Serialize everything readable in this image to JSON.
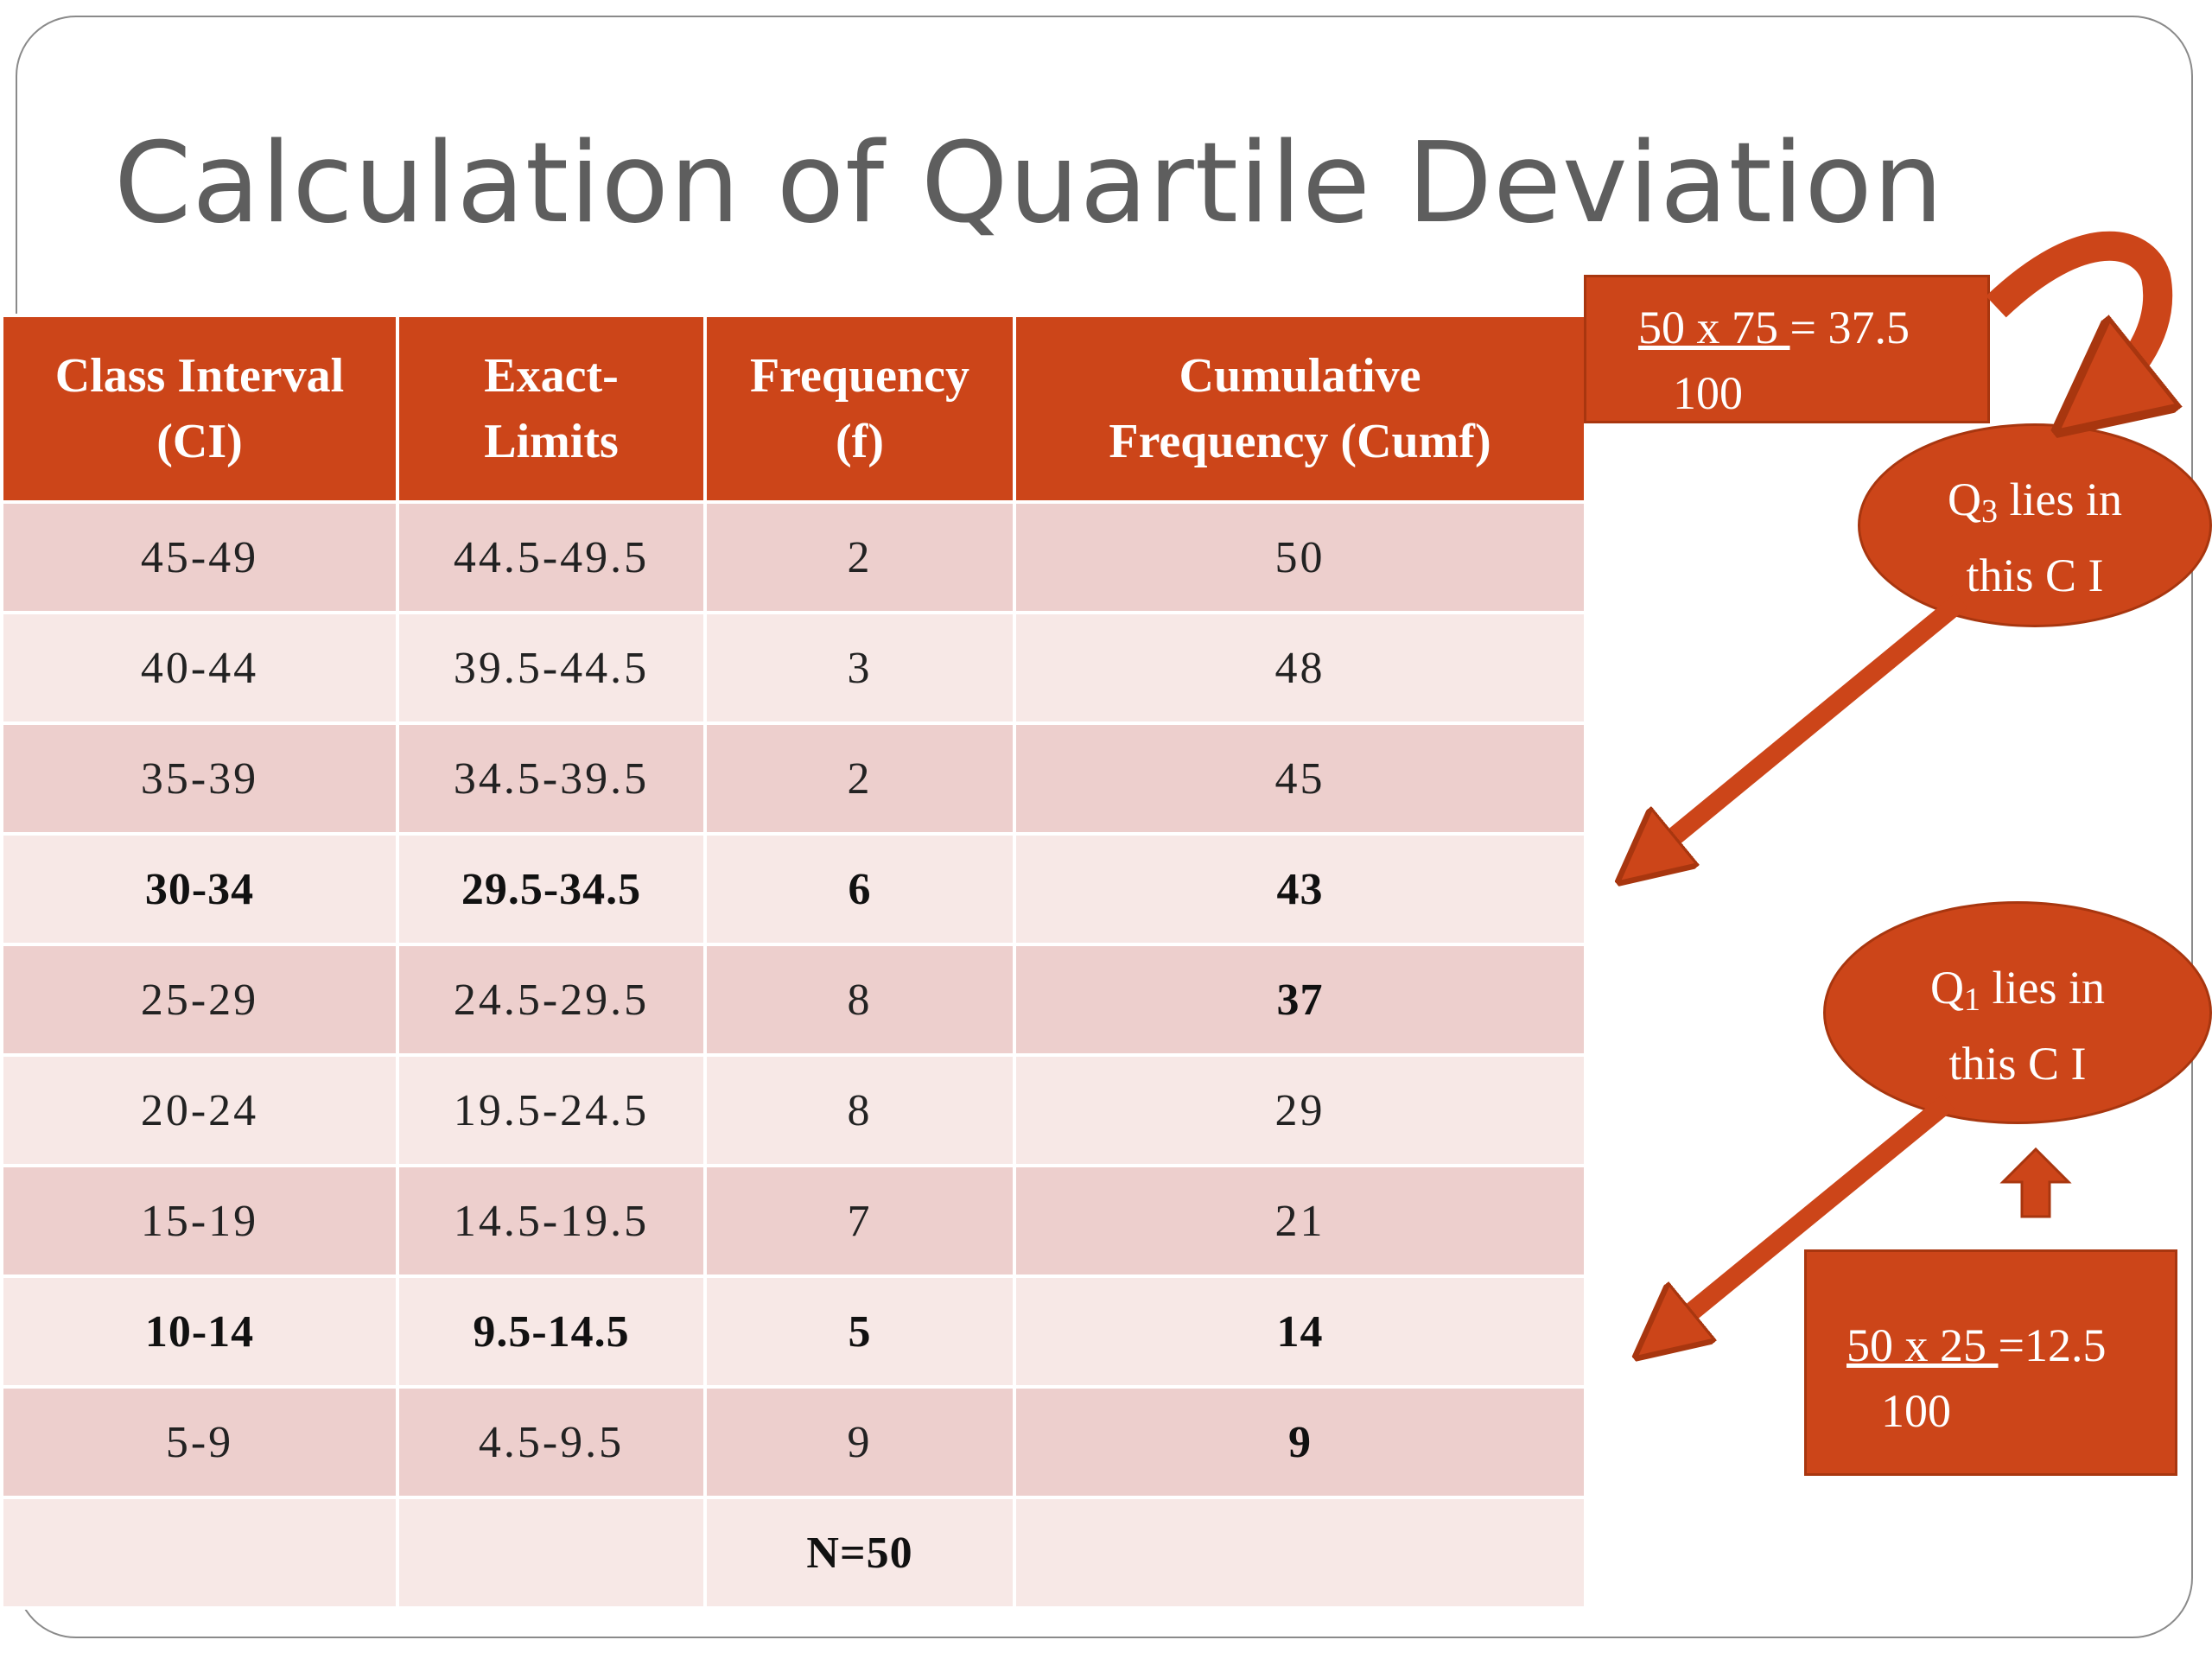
{
  "title": "Calculation of Quartile Deviation",
  "table": {
    "headers": [
      [
        "Class Interval",
        "(CI)"
      ],
      [
        "Exact-",
        "Limits"
      ],
      [
        "Frequency",
        "(f)"
      ],
      [
        "Cumulative",
        "Frequency (Cumf)"
      ]
    ],
    "rows": [
      {
        "ci": "45-49",
        "limits": "44.5-49.5",
        "f": "2",
        "cumf": "50"
      },
      {
        "ci": "40-44",
        "limits": "39.5-44.5",
        "f": "3",
        "cumf": "48"
      },
      {
        "ci": "35-39",
        "limits": "34.5-39.5",
        "f": "2",
        "cumf": "45"
      },
      {
        "ci": "30-34",
        "limits": "29.5-34.5",
        "f": "6",
        "cumf": "43"
      },
      {
        "ci": "25-29",
        "limits": "24.5-29.5",
        "f": "8",
        "cumf": "37"
      },
      {
        "ci": "20-24",
        "limits": "19.5-24.5",
        "f": "8",
        "cumf": "29"
      },
      {
        "ci": "15-19",
        "limits": "14.5-19.5",
        "f": "7",
        "cumf": "21"
      },
      {
        "ci": "10-14",
        "limits": "9.5-14.5",
        "f": "5",
        "cumf": "14"
      },
      {
        "ci": "5-9",
        "limits": "4.5-9.5",
        "f": "9",
        "cumf": "9"
      }
    ],
    "total": "N=50"
  },
  "q3_formula": {
    "numerator": "50 x 75 ",
    "result": "= 37.5",
    "denominator": "100"
  },
  "q1_formula": {
    "numerator": "50 x 25 ",
    "result": "=12.5",
    "denominator": "100"
  },
  "q3_callout": {
    "q": "Q",
    "sub": "3",
    "rest": " lies in",
    "line2": "this C I"
  },
  "q1_callout": {
    "q": "Q",
    "sub": "1",
    "rest": " lies in",
    "line2": "this C I"
  },
  "colors": {
    "accent": "#cc4519",
    "row_dark": "#edcfcd",
    "row_light": "#f7e8e6",
    "title": "#5e5e5e"
  }
}
